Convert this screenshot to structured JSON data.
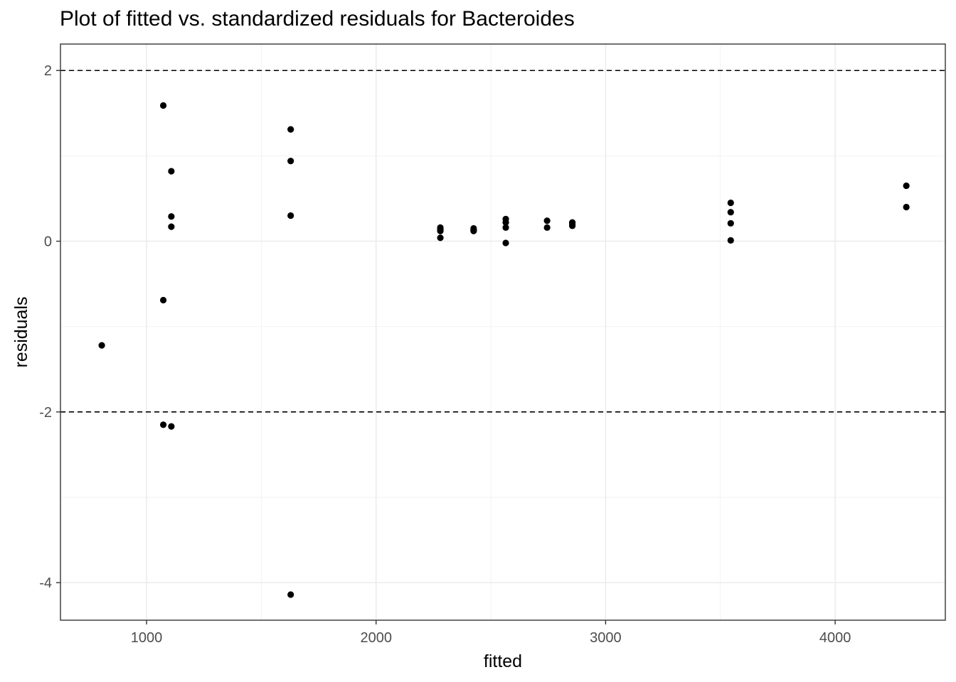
{
  "chart_data": {
    "type": "scatter",
    "title": "Plot of fitted vs. standardized residuals for Bacteroides",
    "xlabel": "fitted",
    "ylabel": "residuals",
    "xlim": [
      625,
      4480
    ],
    "ylim": [
      -4.44,
      2.31
    ],
    "x_ticks": [
      1000,
      2000,
      3000,
      4000
    ],
    "y_ticks": [
      -4,
      -2,
      0,
      2
    ],
    "x_minor_ticks": [
      1500,
      2500,
      3500
    ],
    "y_minor_ticks": [
      -3,
      -1,
      1
    ],
    "grid": true,
    "reference_lines": [
      {
        "y": 2,
        "style": "dashed",
        "color": "#000000"
      },
      {
        "y": -2,
        "style": "dashed",
        "color": "#000000"
      }
    ],
    "point_color": "#000000",
    "points": [
      {
        "x": 805,
        "y": -1.22
      },
      {
        "x": 1073,
        "y": 1.59
      },
      {
        "x": 1073,
        "y": -0.69
      },
      {
        "x": 1073,
        "y": -2.15
      },
      {
        "x": 1108,
        "y": 0.82
      },
      {
        "x": 1108,
        "y": 0.29
      },
      {
        "x": 1108,
        "y": 0.17
      },
      {
        "x": 1108,
        "y": -2.17
      },
      {
        "x": 1628,
        "y": 1.31
      },
      {
        "x": 1628,
        "y": 0.94
      },
      {
        "x": 1628,
        "y": 0.3
      },
      {
        "x": 1628,
        "y": -4.14
      },
      {
        "x": 2280,
        "y": 0.16
      },
      {
        "x": 2280,
        "y": 0.14
      },
      {
        "x": 2280,
        "y": 0.12
      },
      {
        "x": 2280,
        "y": 0.04
      },
      {
        "x": 2425,
        "y": 0.15
      },
      {
        "x": 2425,
        "y": 0.13
      },
      {
        "x": 2425,
        "y": 0.12
      },
      {
        "x": 2565,
        "y": 0.26
      },
      {
        "x": 2565,
        "y": 0.22
      },
      {
        "x": 2565,
        "y": 0.16
      },
      {
        "x": 2565,
        "y": -0.02
      },
      {
        "x": 2745,
        "y": 0.24
      },
      {
        "x": 2745,
        "y": 0.16
      },
      {
        "x": 2855,
        "y": 0.22
      },
      {
        "x": 2855,
        "y": 0.2
      },
      {
        "x": 2855,
        "y": 0.18
      },
      {
        "x": 3545,
        "y": 0.45
      },
      {
        "x": 3545,
        "y": 0.34
      },
      {
        "x": 3545,
        "y": 0.21
      },
      {
        "x": 3545,
        "y": 0.01
      },
      {
        "x": 4310,
        "y": 0.65
      },
      {
        "x": 4310,
        "y": 0.4
      }
    ]
  }
}
